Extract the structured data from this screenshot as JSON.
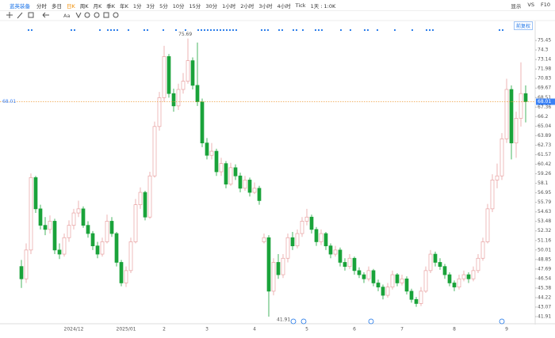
{
  "toolbar": {
    "stock": "蓝英装备",
    "periods": [
      "分时",
      "多日",
      "日K",
      "周K",
      "月K",
      "季K",
      "年K",
      "1分",
      "3分",
      "5分",
      "10分",
      "15分",
      "30分",
      "1小时",
      "2小时",
      "3小时",
      "4小时",
      "Tick",
      "1天 : 1:0K"
    ],
    "active": "日K",
    "right": [
      "显示",
      "VS",
      "F10"
    ],
    "tools_text": "Aa",
    "adjust": "前复权"
  },
  "chart_data": {
    "type": "candlestick",
    "up_color": "#e8a0a0",
    "down_color": "#1aa33a",
    "last_line_color": "#f0a040",
    "grid": false,
    "ylim": [
      41.43,
      77.0
    ],
    "yticks": [
      75.45,
      74.3,
      73.14,
      71.98,
      70.83,
      69.67,
      68.51,
      67.36,
      66.2,
      65.04,
      63.89,
      62.73,
      61.57,
      60.42,
      59.26,
      58.1,
      56.95,
      55.79,
      54.63,
      53.48,
      52.32,
      51.16,
      50.01,
      48.85,
      47.69,
      46.54,
      45.38,
      44.22,
      43.07,
      41.91
    ],
    "categories": [
      null,
      null,
      null,
      null,
      null,
      null,
      null,
      null,
      null,
      null,
      null,
      "2024/12",
      null,
      null,
      null,
      null,
      null,
      null,
      null,
      null,
      null,
      null,
      "2025/01",
      null,
      null,
      null,
      null,
      null,
      null,
      null,
      "2",
      null,
      null,
      null,
      null,
      null,
      null,
      null,
      null,
      "3",
      null,
      null,
      null,
      null,
      null,
      null,
      null,
      null,
      null,
      "4",
      null,
      null,
      null,
      null,
      null,
      null,
      null,
      null,
      null,
      null,
      "5",
      null,
      null,
      null,
      null,
      null,
      null,
      null,
      null,
      null,
      "6",
      null,
      null,
      null,
      null,
      null,
      null,
      null,
      null,
      null,
      "7",
      null,
      null,
      null,
      null,
      null,
      null,
      null,
      null,
      null,
      null,
      "8",
      null,
      null,
      null,
      null,
      null,
      null,
      null,
      null,
      null,
      null,
      "9",
      null,
      null,
      null,
      null
    ],
    "candles": [
      [
        48.0,
        48.8,
        45.4,
        46.5
      ],
      [
        46.5,
        50.8,
        46.0,
        50.0
      ],
      [
        50.0,
        59.3,
        49.5,
        58.8
      ],
      [
        58.8,
        59.0,
        54.5,
        55.0
      ],
      [
        55.0,
        55.5,
        52.5,
        53.0
      ],
      [
        53.0,
        54.0,
        51.8,
        52.5
      ],
      [
        52.5,
        54.2,
        52.0,
        53.5
      ],
      [
        53.5,
        53.8,
        49.5,
        50.0
      ],
      [
        50.0,
        50.8,
        48.9,
        49.5
      ],
      [
        49.5,
        52.0,
        49.2,
        51.5
      ],
      [
        51.5,
        53.6,
        51.0,
        53.0
      ],
      [
        53.0,
        55.0,
        52.5,
        54.5
      ],
      [
        54.5,
        56.0,
        54.0,
        55.0
      ],
      [
        55.0,
        55.3,
        52.7,
        53.0
      ],
      [
        53.0,
        53.5,
        51.5,
        52.0
      ],
      [
        52.0,
        52.3,
        50.0,
        50.5
      ],
      [
        50.5,
        51.0,
        49.0,
        49.5
      ],
      [
        49.5,
        51.5,
        49.2,
        51.0
      ],
      [
        51.0,
        54.3,
        50.8,
        53.5
      ],
      [
        53.5,
        54.0,
        51.6,
        52.0
      ],
      [
        52.0,
        52.2,
        48.0,
        48.5
      ],
      [
        48.5,
        48.8,
        45.6,
        46.0
      ],
      [
        46.0,
        48.0,
        45.5,
        47.5
      ],
      [
        47.5,
        51.5,
        47.2,
        51.0
      ],
      [
        51.0,
        56.2,
        50.8,
        55.5
      ],
      [
        55.5,
        57.6,
        55.0,
        57.0
      ],
      [
        57.0,
        57.2,
        53.6,
        54.0
      ],
      [
        54.0,
        59.5,
        53.8,
        59.0
      ],
      [
        59.0,
        65.6,
        58.8,
        65.0
      ],
      [
        65.0,
        69.2,
        64.5,
        68.5
      ],
      [
        68.5,
        74.8,
        68.0,
        73.5
      ],
      [
        73.5,
        73.8,
        68.5,
        69.0
      ],
      [
        69.0,
        69.6,
        66.8,
        67.5
      ],
      [
        67.5,
        70.2,
        67.0,
        69.5
      ],
      [
        69.5,
        71.5,
        69.0,
        70.5
      ],
      [
        70.5,
        75.69,
        70.2,
        73.0
      ],
      [
        73.0,
        73.4,
        69.5,
        70.0
      ],
      [
        70.0,
        75.2,
        67.5,
        68.0
      ],
      [
        68.0,
        68.4,
        62.5,
        63.0
      ],
      [
        63.0,
        63.6,
        61.0,
        61.5
      ],
      [
        61.5,
        63.0,
        61.0,
        62.0
      ],
      [
        62.0,
        62.3,
        59.0,
        59.5
      ],
      [
        59.5,
        61.2,
        59.0,
        60.5
      ],
      [
        60.5,
        60.8,
        57.5,
        58.0
      ],
      [
        58.0,
        60.6,
        57.8,
        60.0
      ],
      [
        60.0,
        60.4,
        58.5,
        59.0
      ],
      [
        59.0,
        59.4,
        57.0,
        57.5
      ],
      [
        57.5,
        59.0,
        57.2,
        58.5
      ],
      [
        58.5,
        58.8,
        56.5,
        57.0
      ],
      [
        57.0,
        58.2,
        56.8,
        57.5
      ],
      [
        57.5,
        57.8,
        55.5,
        56.0
      ],
      [
        51.0,
        52.0,
        50.8,
        51.5
      ],
      [
        51.5,
        51.8,
        41.91,
        45.0
      ],
      [
        45.0,
        49.0,
        44.5,
        48.5
      ],
      [
        48.5,
        49.5,
        46.5,
        47.0
      ],
      [
        47.0,
        49.5,
        46.6,
        49.0
      ],
      [
        49.0,
        52.0,
        48.5,
        51.5
      ],
      [
        51.5,
        52.2,
        50.0,
        50.5
      ],
      [
        50.5,
        52.5,
        50.2,
        52.0
      ],
      [
        52.0,
        54.0,
        51.6,
        53.5
      ],
      [
        53.5,
        55.0,
        53.0,
        54.0
      ],
      [
        54.0,
        54.3,
        52.0,
        52.5
      ],
      [
        52.5,
        52.8,
        50.5,
        51.0
      ],
      [
        51.0,
        52.5,
        50.6,
        52.0
      ],
      [
        52.0,
        52.2,
        50.0,
        50.5
      ],
      [
        50.5,
        50.8,
        49.0,
        49.5
      ],
      [
        49.5,
        50.5,
        49.2,
        50.0
      ],
      [
        50.0,
        50.3,
        48.0,
        48.5
      ],
      [
        48.5,
        49.0,
        47.5,
        48.0
      ],
      [
        48.0,
        49.5,
        47.7,
        49.0
      ],
      [
        49.0,
        49.2,
        47.0,
        47.5
      ],
      [
        47.5,
        47.9,
        46.6,
        47.0
      ],
      [
        47.0,
        47.3,
        46.0,
        46.5
      ],
      [
        46.5,
        48.0,
        46.2,
        47.5
      ],
      [
        47.5,
        47.7,
        45.6,
        46.0
      ],
      [
        46.0,
        46.4,
        45.0,
        45.5
      ],
      [
        45.5,
        45.8,
        44.0,
        44.5
      ],
      [
        44.5,
        46.0,
        44.2,
        45.5
      ],
      [
        45.5,
        47.5,
        45.2,
        47.0
      ],
      [
        47.0,
        47.2,
        45.6,
        46.0
      ],
      [
        46.0,
        47.0,
        45.7,
        46.5
      ],
      [
        46.5,
        46.8,
        44.6,
        45.0
      ],
      [
        45.0,
        45.3,
        43.6,
        44.0
      ],
      [
        44.0,
        44.3,
        43.1,
        43.5
      ],
      [
        43.5,
        45.5,
        43.2,
        45.0
      ],
      [
        45.0,
        48.0,
        44.8,
        47.5
      ],
      [
        47.5,
        50.0,
        47.2,
        49.5
      ],
      [
        49.5,
        49.8,
        48.0,
        48.5
      ],
      [
        48.5,
        49.0,
        47.6,
        48.0
      ],
      [
        48.0,
        48.3,
        46.5,
        47.0
      ],
      [
        47.0,
        47.3,
        45.6,
        46.0
      ],
      [
        46.0,
        46.3,
        45.0,
        45.5
      ],
      [
        45.5,
        47.0,
        45.2,
        46.5
      ],
      [
        46.5,
        47.5,
        46.2,
        47.0
      ],
      [
        47.0,
        47.3,
        46.0,
        46.5
      ],
      [
        46.5,
        48.0,
        46.2,
        47.5
      ],
      [
        47.5,
        49.5,
        47.2,
        49.0
      ],
      [
        49.0,
        51.5,
        48.7,
        51.0
      ],
      [
        51.0,
        55.6,
        50.8,
        55.0
      ],
      [
        55.0,
        59.2,
        54.6,
        58.5
      ],
      [
        58.5,
        60.5,
        57.5,
        59.0
      ],
      [
        59.0,
        64.2,
        58.5,
        63.5
      ],
      [
        63.5,
        70.8,
        63.0,
        69.5
      ],
      [
        69.5,
        70.0,
        61.0,
        63.0
      ],
      [
        63.0,
        66.8,
        61.2,
        66.0
      ],
      [
        66.0,
        72.8,
        65.0,
        69.0
      ],
      [
        69.0,
        70.0,
        65.5,
        68.01
      ]
    ]
  }
}
